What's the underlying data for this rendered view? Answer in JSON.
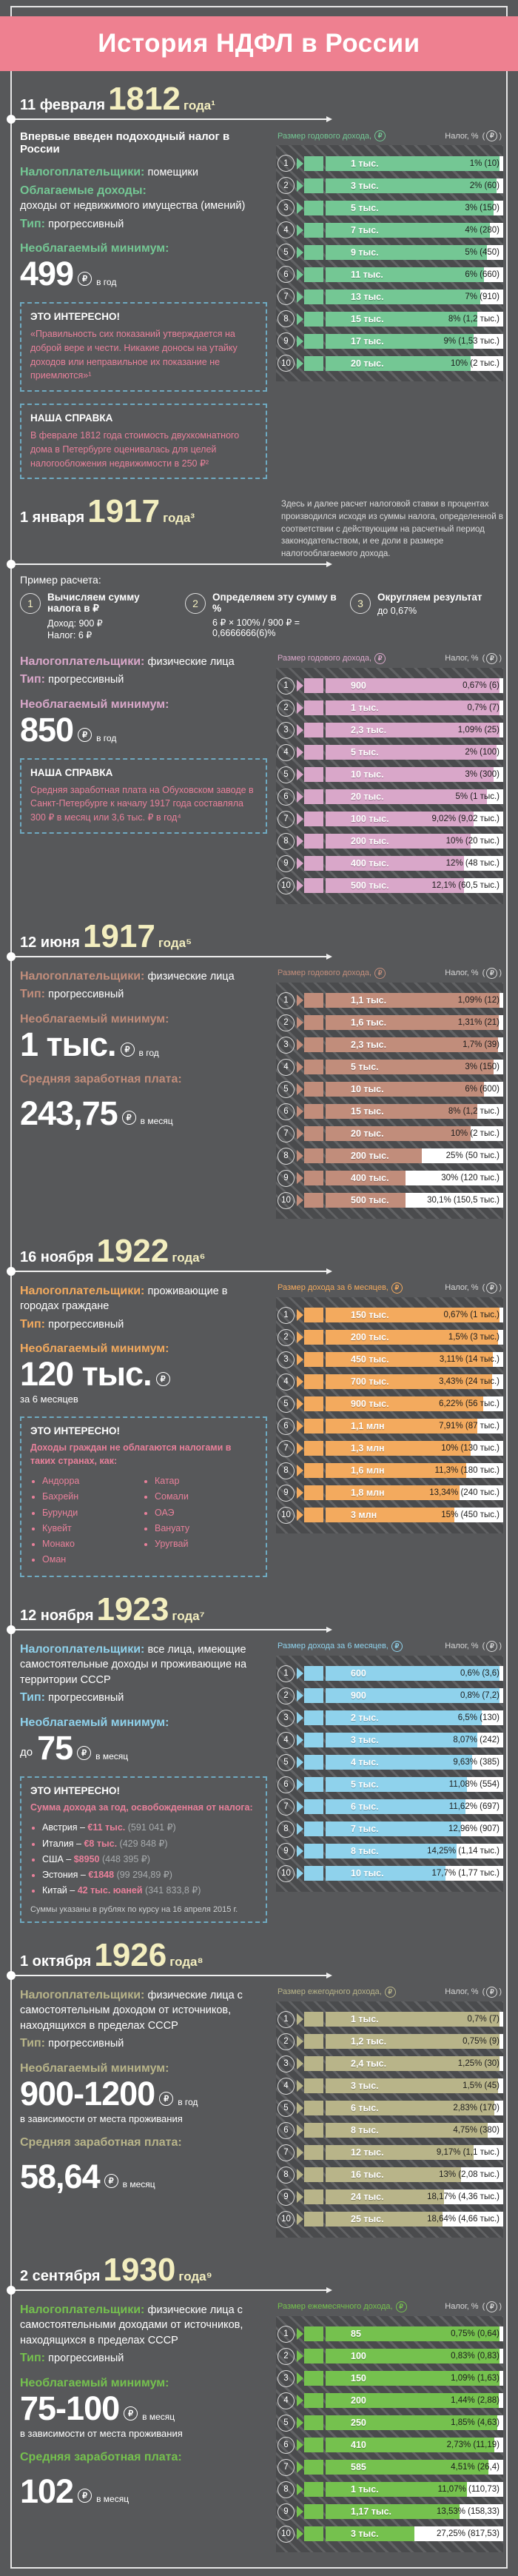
{
  "header": {
    "title": "История НДФЛ в России"
  },
  "sections": [
    {
      "accent": "#74c794",
      "date_prefix": "11 февраля",
      "year": "1812",
      "date_suffix": "года¹",
      "subtitle": "Впервые введен подоходный налог в России",
      "taxpayers_label": "Налогоплательщики:",
      "taxpayers": "помещики",
      "taxable_label": "Облагаемые доходы:",
      "taxable": "доходы от недвижимого имущества (имений)",
      "type_label": "Тип:",
      "type": "прогрессивный",
      "minimum_label": "Необлагаемый минимум:",
      "minimum_value": "499",
      "minimum_unit": "в год",
      "fact": {
        "title": "ЭТО ИНТЕРЕСНО!",
        "text": "«Правильность сих показаний утверждается на доброй вере и чести. Никакие доносы на утайку доходов или неправильное их показание не приемлются»¹"
      },
      "spravka": {
        "title": "НАША СПРАВКА",
        "text": "В феврале 1812 года стоимость двухкомнатного дома в Петербурге оценивалась для целей налогообложения недвижимости в 250 ₽²"
      }
    },
    {
      "accent": "#d9a7c9",
      "date_prefix": "1 января",
      "year": "1917",
      "date_suffix": "года³",
      "intro": "Здесь и далее расчет налоговой ставки в процентах производился исходя из суммы налога, определенной в соответствии с действующим на расчетный период законодательством, и ее доли в размере налогооблагаемого дохода.",
      "example": {
        "label": "Пример расчета:",
        "steps": [
          {
            "n": "1",
            "title": "Вычисляем сумму налога в ₽",
            "lines": [
              "Доход: 900 ₽",
              "Налог: 6 ₽"
            ]
          },
          {
            "n": "2",
            "title": "Определяем эту сумму в %",
            "lines": [
              "6 ₽ × 100% / 900 ₽ = 0,6666666(6)%"
            ]
          },
          {
            "n": "3",
            "title": "Округляем результат",
            "lines": [
              "до 0,67%"
            ]
          }
        ]
      },
      "taxpayers_label": "Налогоплательщики:",
      "taxpayers": "физические лица",
      "type_label": "Тип:",
      "type": "прогрессивный",
      "minimum_label": "Необлагаемый минимум:",
      "minimum_value": "850",
      "minimum_unit": "в год",
      "spravka": {
        "title": "НАША СПРАВКА",
        "text": "Средняя заработная плата на Обуховском заводе в Санкт-Петербурге к началу 1917 года составляла 300 ₽ в месяц или 3,6 тыс. ₽ в год⁴"
      }
    },
    {
      "accent": "#c18d7b",
      "date_prefix": "12 июня",
      "year": "1917",
      "date_suffix": "года⁵",
      "taxpayers_label": "Налогоплательщики:",
      "taxpayers": "физические лица",
      "type_label": "Тип:",
      "type": "прогрессивный",
      "minimum_label": "Необлагаемый минимум:",
      "minimum_value": "1 тыс.",
      "minimum_unit": "в год",
      "salary_label": "Средняя заработная плата:",
      "salary_value": "243,75",
      "salary_unit": "в месяц"
    },
    {
      "accent": "#f3aa5e",
      "date_prefix": "16 ноября",
      "year": "1922",
      "date_suffix": "года⁶",
      "taxpayers_label": "Налогоплательщики:",
      "taxpayers": "проживающие в городах граждане",
      "type_label": "Тип:",
      "type": "прогрессивный",
      "minimum_label": "Необлагаемый минимум:",
      "minimum_value": "120 тыс.",
      "minimum_note": "за 6 месяцев",
      "fact": {
        "title": "ЭТО ИНТЕРЕСНО!",
        "intro": "Доходы граждан не облагаются налогами в таких странах, как:",
        "columns": 2,
        "list": [
          "Андорра",
          "Бахрейн",
          "Бурунди",
          "Кувейт",
          "Монако",
          "Оман",
          "Катар",
          "Сомали",
          "ОАЭ",
          "Вануату",
          "Уругвай"
        ]
      }
    },
    {
      "accent": "#8fd2ec",
      "date_prefix": "12 ноября",
      "year": "1923",
      "date_suffix": "года⁷",
      "taxpayers_label": "Налогоплательщики:",
      "taxpayers": "все лица, имеющие самостоятельные доходы и проживающие на территории СССР",
      "type_label": "Тип:",
      "type": "прогрессивный",
      "minimum_label": "Необлагаемый минимум:",
      "minimum_prefix": "до",
      "minimum_value": "75",
      "minimum_unit": "в месяц",
      "fact": {
        "title": "ЭТО ИНТЕРЕСНО!",
        "intro": "Сумма дохода за год, освобожденная от налога:",
        "rich": [
          {
            "name": "Австрия",
            "amount": "€11 тыс.",
            "rub": "591 041 ₽"
          },
          {
            "name": "Италия",
            "amount": "€8 тыс.",
            "rub": "429 848 ₽"
          },
          {
            "name": "США",
            "amount": "$8950",
            "rub": "448 395 ₽"
          },
          {
            "name": "Эстония",
            "amount": "€1848",
            "rub": "99 294,89 ₽"
          },
          {
            "name": "Китай",
            "amount": "42 тыс. юаней",
            "rub": "341 833,8 ₽"
          }
        ],
        "note": "Суммы указаны в рублях по курсу на 16 апреля 2015 г."
      }
    },
    {
      "accent": "#b8b489",
      "date_prefix": "1 октября",
      "year": "1926",
      "date_suffix": "года⁸",
      "taxpayers_label": "Налогоплательщики:",
      "taxpayers": "физические лица с самостоятельным доходом от источников, находящихся в пределах СССР",
      "type_label": "Тип:",
      "type": "прогрессивный",
      "minimum_label": "Необлагаемый минимум:",
      "minimum_value": "900-1200",
      "minimum_unit": "в год",
      "minimum_note": "в зависимости от места проживания",
      "salary_label": "Средняя заработная плата:",
      "salary_value": "58,64",
      "salary_unit": "в месяц"
    },
    {
      "accent": "#75c14e",
      "date_prefix": "2 сентября",
      "year": "1930",
      "date_suffix": "года⁹",
      "taxpayers_label": "Налогоплательщики:",
      "taxpayers": "физические лица с самостоятельными доходами от источников, находящихся в пределах СССР",
      "type_label": "Тип:",
      "type": "прогрессивный",
      "minimum_label": "Необлагаемый минимум:",
      "minimum_value": "75-100",
      "minimum_unit": "в месяц",
      "minimum_note": "в зависимости от места проживания",
      "salary_label": "Средняя заработная плата:",
      "salary_value": "102",
      "salary_unit": "в месяц"
    }
  ],
  "chart_data": [
    {
      "type": "bar",
      "title": "11 февраля 1812 года",
      "income_label": "Размер годового дохода,",
      "tax_label": "Налог, %",
      "rows": [
        {
          "income": "1 тыс.",
          "percent": 1,
          "tax": "1% (10)"
        },
        {
          "income": "3 тыс.",
          "percent": 2,
          "tax": "2% (60)"
        },
        {
          "income": "5 тыс.",
          "percent": 3,
          "tax": "3% (150)"
        },
        {
          "income": "7 тыс.",
          "percent": 4,
          "tax": "4% (280)"
        },
        {
          "income": "9 тыс.",
          "percent": 5,
          "tax": "5% (450)"
        },
        {
          "income": "11 тыс.",
          "percent": 6,
          "tax": "6% (660)"
        },
        {
          "income": "13 тыс.",
          "percent": 7,
          "tax": "7% (910)"
        },
        {
          "income": "15 тыс.",
          "percent": 8,
          "tax": "8% (1,2 тыс.)"
        },
        {
          "income": "17 тыс.",
          "percent": 9,
          "tax": "9% (1,53 тыс.)"
        },
        {
          "income": "20 тыс.",
          "percent": 10,
          "tax": "10% (2 тыс.)"
        }
      ]
    },
    {
      "type": "bar",
      "title": "1 января 1917 года",
      "income_label": "Размер годового дохода,",
      "tax_label": "Налог, %",
      "rows": [
        {
          "income": "900",
          "percent": 0.67,
          "tax": "0,67% (6)"
        },
        {
          "income": "1 тыс.",
          "percent": 0.7,
          "tax": "0,7% (7)"
        },
        {
          "income": "2,3 тыс.",
          "percent": 1.09,
          "tax": "1,09% (25)"
        },
        {
          "income": "5 тыс.",
          "percent": 2,
          "tax": "2% (100)"
        },
        {
          "income": "10 тыс.",
          "percent": 3,
          "tax": "3% (300)"
        },
        {
          "income": "20 тыс.",
          "percent": 5,
          "tax": "5% (1 тыс.)"
        },
        {
          "income": "100 тыс.",
          "percent": 9.02,
          "tax": "9,02% (9,02 тыс.)"
        },
        {
          "income": "200 тыс.",
          "percent": 10,
          "tax": "10% (20 тыс.)"
        },
        {
          "income": "400 тыс.",
          "percent": 12,
          "tax": "12% (48 тыс.)"
        },
        {
          "income": "500 тыс.",
          "percent": 12.1,
          "tax": "12,1% (60,5 тыс.)"
        }
      ]
    },
    {
      "type": "bar",
      "title": "12 июня 1917 года",
      "income_label": "Размер годового дохода,",
      "tax_label": "Налог, %",
      "rows": [
        {
          "income": "1,1 тыс.",
          "percent": 1.09,
          "tax": "1,09% (12)"
        },
        {
          "income": "1,6 тыс.",
          "percent": 1.31,
          "tax": "1,31% (21)"
        },
        {
          "income": "2,3 тыс.",
          "percent": 1.7,
          "tax": "1,7% (39)"
        },
        {
          "income": "5 тыс.",
          "percent": 3,
          "tax": "3% (150)"
        },
        {
          "income": "10 тыс.",
          "percent": 6,
          "tax": "6% (600)"
        },
        {
          "income": "15 тыс.",
          "percent": 8,
          "tax": "8% (1,2 тыс.)"
        },
        {
          "income": "20 тыс.",
          "percent": 10,
          "tax": "10% (2 тыс.)"
        },
        {
          "income": "200 тыс.",
          "percent": 25,
          "tax": "25% (50 тыс.)"
        },
        {
          "income": "400 тыс.",
          "percent": 30,
          "tax": "30% (120 тыс.)"
        },
        {
          "income": "500 тыс.",
          "percent": 30.1,
          "tax": "30,1% (150,5 тыс.)"
        }
      ]
    },
    {
      "type": "bar",
      "title": "16 ноября 1922 года",
      "income_label": "Размер дохода за 6 месяцев,",
      "tax_label": "Налог, %",
      "rows": [
        {
          "income": "150 тыс.",
          "percent": 0.67,
          "tax": "0,67% (1 тыс.)"
        },
        {
          "income": "200 тыс.",
          "percent": 1.5,
          "tax": "1,5% (3 тыс.)"
        },
        {
          "income": "450 тыс.",
          "percent": 3.11,
          "tax": "3,11% (14 тыс.)"
        },
        {
          "income": "700 тыс.",
          "percent": 3.43,
          "tax": "3,43% (24 тыс.)"
        },
        {
          "income": "900 тыс.",
          "percent": 6.22,
          "tax": "6,22% (56 тыс.)"
        },
        {
          "income": "1,1 млн",
          "percent": 7.91,
          "tax": "7,91% (87 тыс.)"
        },
        {
          "income": "1,3 млн",
          "percent": 10,
          "tax": "10% (130 тыс.)"
        },
        {
          "income": "1,6 млн",
          "percent": 11.3,
          "tax": "11,3% (180 тыс.)"
        },
        {
          "income": "1,8 млн",
          "percent": 13.34,
          "tax": "13,34% (240 тыс.)"
        },
        {
          "income": "3 млн",
          "percent": 15,
          "tax": "15% (450 тыс.)"
        }
      ]
    },
    {
      "type": "bar",
      "title": "12 ноября 1923 года",
      "income_label": "Размер дохода за 6 месяцев,",
      "tax_label": "Налог, %",
      "rows": [
        {
          "income": "600",
          "percent": 0.6,
          "tax": "0,6% (3,6)"
        },
        {
          "income": "900",
          "percent": 0.8,
          "tax": "0,8% (7,2)"
        },
        {
          "income": "2 тыс.",
          "percent": 6.5,
          "tax": "6,5% (130)"
        },
        {
          "income": "3 тыс.",
          "percent": 8.07,
          "tax": "8,07% (242)"
        },
        {
          "income": "4 тыс.",
          "percent": 9.63,
          "tax": "9,63% (385)"
        },
        {
          "income": "5 тыс.",
          "percent": 11.08,
          "tax": "11,08% (554)"
        },
        {
          "income": "6 тыс.",
          "percent": 11.62,
          "tax": "11,62% (697)"
        },
        {
          "income": "7 тыс.",
          "percent": 12.96,
          "tax": "12,96% (907)"
        },
        {
          "income": "8 тыс.",
          "percent": 14.25,
          "tax": "14,25% (1,14 тыс.)"
        },
        {
          "income": "10 тыс.",
          "percent": 17.7,
          "tax": "17,7% (1,77 тыс.)"
        }
      ]
    },
    {
      "type": "bar",
      "title": "1 октября 1926 года",
      "income_label": "Размер ежегодного дохода,",
      "tax_label": "Налог, %",
      "rows": [
        {
          "income": "1 тыс.",
          "percent": 0.7,
          "tax": "0,7% (7)"
        },
        {
          "income": "1,2 тыс.",
          "percent": 0.75,
          "tax": "0,75% (9)"
        },
        {
          "income": "2,4 тыс.",
          "percent": 1.25,
          "tax": "1,25% (30)"
        },
        {
          "income": "3 тыс.",
          "percent": 1.5,
          "tax": "1,5% (45)"
        },
        {
          "income": "6 тыс.",
          "percent": 2.83,
          "tax": "2,83% (170)"
        },
        {
          "income": "8 тыс.",
          "percent": 4.75,
          "tax": "4,75% (380)"
        },
        {
          "income": "12 тыс.",
          "percent": 9.17,
          "tax": "9,17% (1,1 тыс.)"
        },
        {
          "income": "16 тыс.",
          "percent": 13,
          "tax": "13% (2,08 тыс.)"
        },
        {
          "income": "24 тыс.",
          "percent": 18.17,
          "tax": "18,17% (4,36 тыс.)"
        },
        {
          "income": "25 тыс.",
          "percent": 18.64,
          "tax": "18,64% (4,66 тыс.)"
        }
      ]
    },
    {
      "type": "bar",
      "title": "2 сентября 1930 года",
      "income_label": "Размер ежемесячного дохода,",
      "tax_label": "Налог, %",
      "rows": [
        {
          "income": "85",
          "percent": 0.75,
          "tax": "0,75% (0,64)"
        },
        {
          "income": "100",
          "percent": 0.83,
          "tax": "0,83% (0,83)"
        },
        {
          "income": "150",
          "percent": 1.09,
          "tax": "1,09% (1,63)"
        },
        {
          "income": "200",
          "percent": 1.44,
          "tax": "1,44% (2,88)"
        },
        {
          "income": "250",
          "percent": 1.85,
          "tax": "1,85% (4,63)"
        },
        {
          "income": "410",
          "percent": 2.73,
          "tax": "2,73% (11,19)"
        },
        {
          "income": "585",
          "percent": 4.51,
          "tax": "4,51% (26,4)"
        },
        {
          "income": "1 тыс.",
          "percent": 11.07,
          "tax": "11,07% (110,73)"
        },
        {
          "income": "1,17 тыс.",
          "percent": 13.53,
          "tax": "13,53% (158,33)"
        },
        {
          "income": "3 тыс.",
          "percent": 27.25,
          "tax": "27,25% (817,53)"
        }
      ]
    }
  ]
}
